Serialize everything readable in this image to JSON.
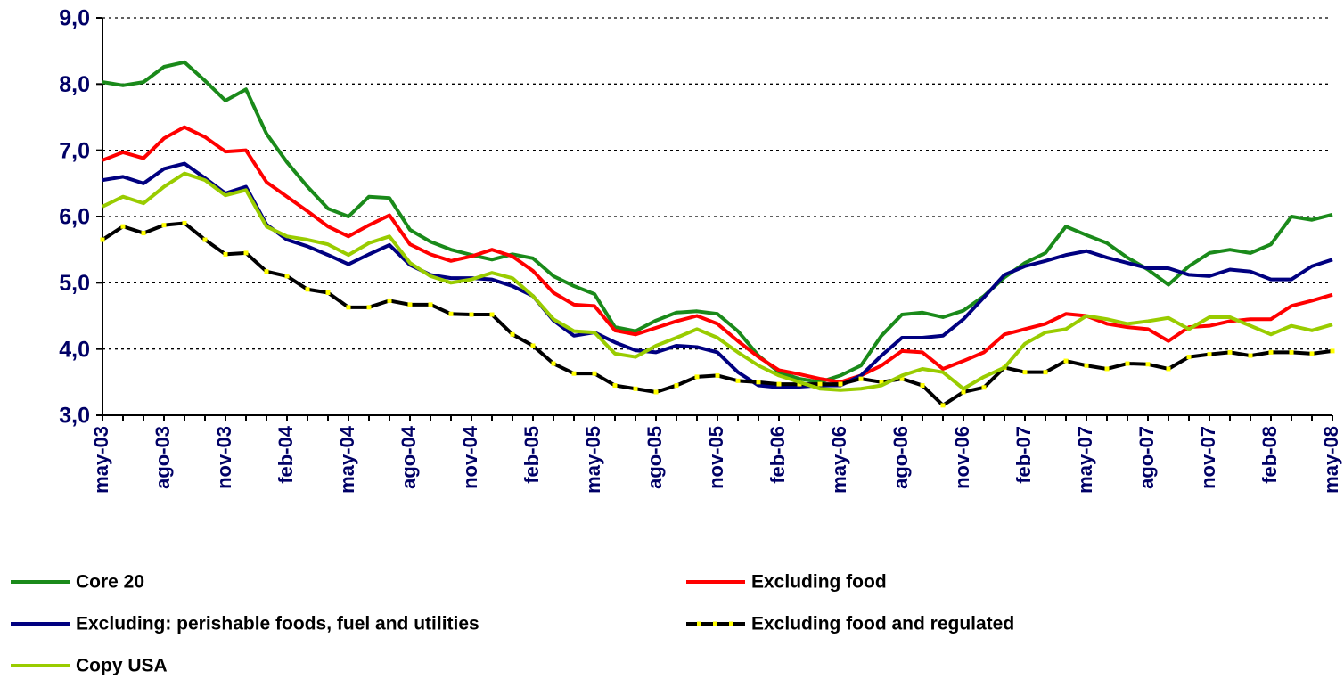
{
  "chart_data": {
    "type": "line",
    "categories": [
      "may-03",
      null,
      null,
      "ago-03",
      null,
      null,
      "nov-03",
      null,
      null,
      "feb-04",
      null,
      null,
      "may-04",
      null,
      null,
      "ago-04",
      null,
      null,
      "nov-04",
      null,
      null,
      "feb-05",
      null,
      null,
      "may-05",
      null,
      null,
      "ago-05",
      null,
      null,
      "nov-05",
      null,
      null,
      "feb-06",
      null,
      null,
      "may-06",
      null,
      null,
      "ago-06",
      null,
      null,
      "nov-06",
      null,
      null,
      "feb-07",
      null,
      null,
      "may-07",
      null,
      null,
      "ago-07",
      null,
      null,
      "nov-07",
      null,
      null,
      "feb-08",
      null,
      null,
      "may-08"
    ],
    "series": [
      {
        "name": "Core 20",
        "color": "#1a8a1a",
        "values": [
          8.03,
          7.98,
          8.03,
          8.26,
          8.33,
          8.05,
          7.75,
          7.92,
          7.25,
          6.82,
          6.45,
          6.12,
          6.0,
          6.3,
          6.28,
          5.8,
          5.62,
          5.5,
          5.42,
          5.35,
          5.43,
          5.37,
          5.1,
          4.95,
          4.83,
          4.33,
          4.27,
          4.43,
          4.55,
          4.57,
          4.53,
          4.27,
          3.9,
          3.65,
          3.55,
          3.5,
          3.6,
          3.75,
          4.2,
          4.52,
          4.55,
          4.48,
          4.58,
          4.8,
          5.08,
          5.3,
          5.45,
          5.85,
          5.72,
          5.6,
          5.38,
          5.2,
          4.97,
          5.25,
          5.45,
          5.5,
          5.45,
          5.58,
          6.0,
          5.95,
          6.03
        ]
      },
      {
        "name": "Excluding food",
        "color": "#ff0000",
        "values": [
          6.85,
          6.97,
          6.88,
          7.18,
          7.35,
          7.2,
          6.98,
          7.0,
          6.52,
          6.3,
          6.08,
          5.85,
          5.7,
          5.87,
          6.02,
          5.58,
          5.43,
          5.33,
          5.4,
          5.5,
          5.4,
          5.18,
          4.85,
          4.67,
          4.65,
          4.28,
          4.22,
          4.32,
          4.42,
          4.5,
          4.38,
          4.12,
          3.88,
          3.68,
          3.62,
          3.55,
          3.5,
          3.6,
          3.75,
          3.97,
          3.95,
          3.7,
          3.82,
          3.95,
          4.22,
          4.3,
          4.38,
          4.53,
          4.5,
          4.38,
          4.33,
          4.3,
          4.12,
          4.33,
          4.35,
          4.42,
          4.45,
          4.45,
          4.65,
          4.73,
          4.82
        ]
      },
      {
        "name": "Excluding: perishable foods, fuel and utilities",
        "color": "#000080",
        "values": [
          6.55,
          6.6,
          6.5,
          6.72,
          6.8,
          6.58,
          6.35,
          6.45,
          5.88,
          5.65,
          5.55,
          5.42,
          5.28,
          5.43,
          5.57,
          5.27,
          5.12,
          5.07,
          5.07,
          5.05,
          4.95,
          4.8,
          4.43,
          4.2,
          4.25,
          4.1,
          3.98,
          3.95,
          4.05,
          4.03,
          3.95,
          3.65,
          3.45,
          3.42,
          3.43,
          3.45,
          3.45,
          3.6,
          3.9,
          4.17,
          4.17,
          4.2,
          4.45,
          4.78,
          5.12,
          5.25,
          5.33,
          5.42,
          5.48,
          5.38,
          5.3,
          5.22,
          5.22,
          5.12,
          5.1,
          5.2,
          5.17,
          5.05,
          5.05,
          5.25,
          5.35
        ]
      },
      {
        "name": "Excluding food and regulated",
        "color": "#000000",
        "marker_color": "#ffff00",
        "values": [
          5.65,
          5.85,
          5.75,
          5.87,
          5.9,
          5.65,
          5.43,
          5.45,
          5.17,
          5.1,
          4.9,
          4.85,
          4.63,
          4.63,
          4.73,
          4.67,
          4.67,
          4.53,
          4.52,
          4.52,
          4.22,
          4.05,
          3.78,
          3.63,
          3.63,
          3.45,
          3.4,
          3.35,
          3.45,
          3.58,
          3.6,
          3.52,
          3.5,
          3.47,
          3.47,
          3.47,
          3.47,
          3.55,
          3.5,
          3.55,
          3.45,
          3.15,
          3.35,
          3.42,
          3.72,
          3.65,
          3.65,
          3.82,
          3.75,
          3.7,
          3.78,
          3.77,
          3.7,
          3.88,
          3.92,
          3.95,
          3.9,
          3.95,
          3.95,
          3.93,
          3.97
        ]
      },
      {
        "name": "Copy USA",
        "color": "#99cc00",
        "values": [
          6.15,
          6.3,
          6.2,
          6.45,
          6.65,
          6.55,
          6.32,
          6.4,
          5.85,
          5.7,
          5.65,
          5.58,
          5.42,
          5.6,
          5.7,
          5.3,
          5.1,
          5.0,
          5.05,
          5.15,
          5.07,
          4.8,
          4.45,
          4.27,
          4.25,
          3.93,
          3.88,
          4.05,
          4.17,
          4.3,
          4.17,
          3.95,
          3.75,
          3.6,
          3.5,
          3.4,
          3.38,
          3.4,
          3.45,
          3.6,
          3.7,
          3.65,
          3.4,
          3.58,
          3.72,
          4.08,
          4.25,
          4.3,
          4.5,
          4.45,
          4.38,
          4.42,
          4.47,
          4.3,
          4.48,
          4.48,
          4.35,
          4.22,
          4.35,
          4.28,
          4.37
        ]
      }
    ],
    "ylim": [
      3,
      9
    ],
    "yticks": [
      {
        "value": 3,
        "label": "3,0"
      },
      {
        "value": 4,
        "label": "4,0"
      },
      {
        "value": 5,
        "label": "5,0"
      },
      {
        "value": 6,
        "label": "6,0"
      },
      {
        "value": 7,
        "label": "7,0"
      },
      {
        "value": 8,
        "label": "8,0"
      },
      {
        "value": 9,
        "label": "9,0"
      }
    ],
    "grid": true,
    "legend": "bottom"
  }
}
